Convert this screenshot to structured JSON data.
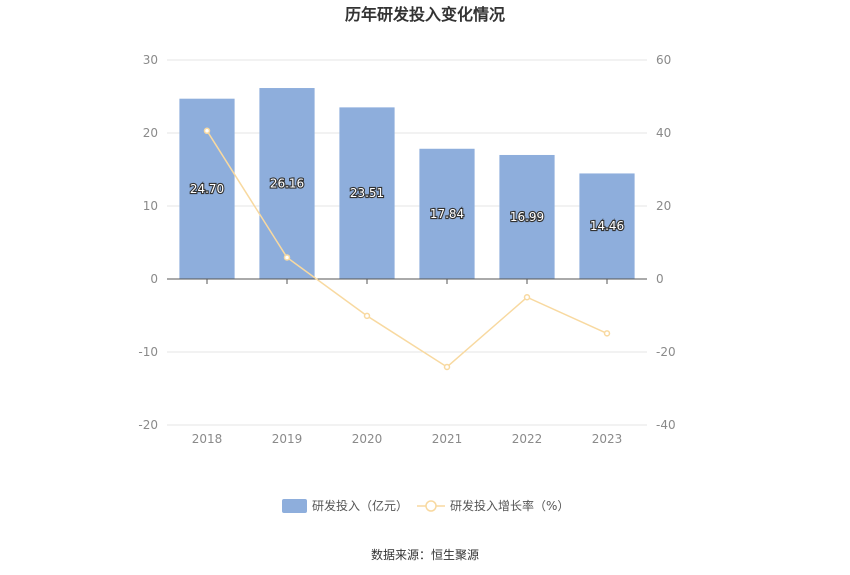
{
  "chart_data": {
    "type": "bar",
    "title": "历年研发投入变化情况",
    "categories": [
      "2018",
      "2019",
      "2020",
      "2021",
      "2022",
      "2023"
    ],
    "series": [
      {
        "name": "研发投入（亿元）",
        "type": "bar",
        "axis": "left",
        "color": "#8eaedc",
        "values": [
          24.7,
          26.16,
          23.51,
          17.84,
          16.99,
          14.46
        ],
        "labels": [
          "24.70",
          "26.16",
          "23.51",
          "17.84",
          "16.99",
          "14.46"
        ]
      },
      {
        "name": "研发投入增长率（%）",
        "type": "line",
        "axis": "right",
        "color": "#f8d9a0",
        "values": [
          40.6,
          5.9,
          -10.1,
          -24.1,
          -5.0,
          -14.9
        ]
      }
    ],
    "y_left": {
      "min": -20,
      "max": 30,
      "ticks": [
        "30",
        "20",
        "10",
        "0",
        "-10",
        "-20"
      ]
    },
    "y_right": {
      "min": -40,
      "max": 60,
      "ticks": [
        "60",
        "40",
        "20",
        "0",
        "-20",
        "-40"
      ]
    },
    "grid": true,
    "legend_position": "bottom",
    "source": "数据来源：恒生聚源"
  }
}
